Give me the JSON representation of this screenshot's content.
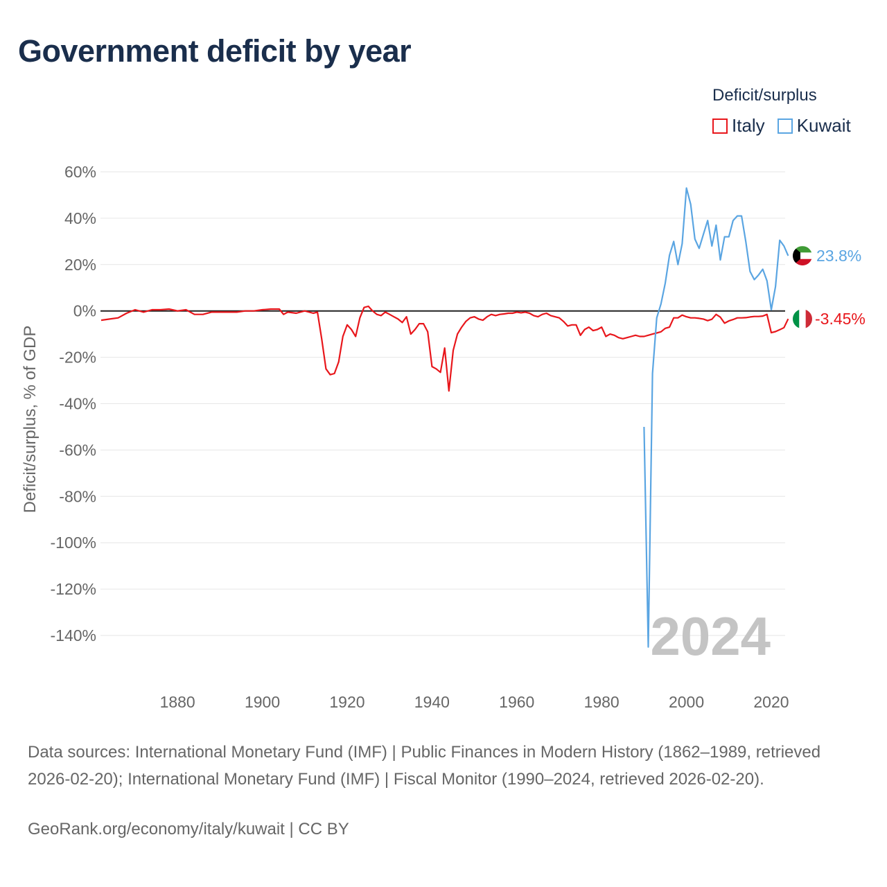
{
  "title": "Government deficit by year",
  "legend": {
    "title": "Deficit/surplus",
    "items": [
      {
        "name": "Italy",
        "color": "#e8161b"
      },
      {
        "name": "Kuwait",
        "color": "#5aa5e2"
      }
    ]
  },
  "chart_data": {
    "type": "line",
    "title": "Government deficit by year",
    "xlabel": "",
    "ylabel": "Deficit/surplus, % of GDP",
    "xlim": [
      1862,
      2024
    ],
    "ylim": [
      -150,
      60
    ],
    "y_ticks": [
      60,
      40,
      20,
      0,
      -20,
      -40,
      -60,
      -80,
      -100,
      -120,
      -140
    ],
    "y_tick_labels": [
      "60%",
      "40%",
      "20%",
      "0%",
      "-20%",
      "-40%",
      "-60%",
      "-80%",
      "-100%",
      "-120%",
      "-140%"
    ],
    "x_ticks": [
      1880,
      1900,
      1920,
      1940,
      1960,
      1980,
      2000,
      2020
    ],
    "x_tick_labels": [
      "1880",
      "1900",
      "1920",
      "1940",
      "1960",
      "1980",
      "2000",
      "2020"
    ],
    "grid": true,
    "legend_position": "top-right",
    "year_label": "2024",
    "series": [
      {
        "name": "Italy",
        "color": "#e8161b",
        "end_label": "-3.45%",
        "x": [
          1862,
          1864,
          1866,
          1868,
          1870,
          1872,
          1874,
          1876,
          1878,
          1880,
          1882,
          1884,
          1886,
          1888,
          1890,
          1892,
          1894,
          1896,
          1898,
          1900,
          1902,
          1904,
          1905,
          1906,
          1908,
          1910,
          1912,
          1913,
          1914,
          1915,
          1916,
          1917,
          1918,
          1919,
          1920,
          1921,
          1922,
          1923,
          1924,
          1925,
          1926,
          1927,
          1928,
          1929,
          1930,
          1931,
          1932,
          1933,
          1934,
          1935,
          1936,
          1937,
          1938,
          1939,
          1940,
          1941,
          1942,
          1943,
          1944,
          1945,
          1946,
          1947,
          1948,
          1949,
          1950,
          1951,
          1952,
          1953,
          1954,
          1955,
          1956,
          1957,
          1958,
          1959,
          1960,
          1961,
          1962,
          1963,
          1964,
          1965,
          1966,
          1967,
          1968,
          1969,
          1970,
          1971,
          1972,
          1973,
          1974,
          1975,
          1976,
          1977,
          1978,
          1979,
          1980,
          1981,
          1982,
          1983,
          1984,
          1985,
          1986,
          1987,
          1988,
          1989,
          1990,
          1991,
          1992,
          1993,
          1994,
          1995,
          1996,
          1997,
          1998,
          1999,
          2000,
          2001,
          2002,
          2003,
          2004,
          2005,
          2006,
          2007,
          2008,
          2009,
          2010,
          2011,
          2012,
          2013,
          2014,
          2015,
          2016,
          2017,
          2018,
          2019,
          2020,
          2021,
          2022,
          2023,
          2024
        ],
        "values": [
          -4,
          -3.5,
          -3,
          -1,
          0.5,
          -0.5,
          0.5,
          0.5,
          0.8,
          0,
          0.5,
          -1.5,
          -1.5,
          -0.5,
          -0.5,
          -0.5,
          -0.5,
          0,
          0,
          0.5,
          0.8,
          0.8,
          -1.5,
          -0.5,
          -1,
          0,
          -1,
          -0.5,
          -12,
          -25,
          -27.5,
          -27,
          -22,
          -11,
          -6,
          -8,
          -11,
          -3,
          1.5,
          2,
          0,
          -1.5,
          -2,
          -0.5,
          -1.5,
          -2.5,
          -3.5,
          -5,
          -2.5,
          -10,
          -8,
          -5.5,
          -5.5,
          -9,
          -24,
          -25,
          -26.5,
          -16,
          -34.5,
          -17,
          -10,
          -7,
          -4.5,
          -3,
          -2.5,
          -3.5,
          -4,
          -2.5,
          -1.5,
          -2,
          -1.5,
          -1.3,
          -1,
          -1,
          -0.5,
          -0.8,
          -0.5,
          -1,
          -2,
          -2.5,
          -1.5,
          -1,
          -2,
          -2.5,
          -3,
          -4.5,
          -6.5,
          -6,
          -6,
          -10.5,
          -8,
          -7,
          -8.5,
          -8,
          -7,
          -11,
          -10,
          -10.5,
          -11.5,
          -12,
          -11.5,
          -11,
          -10.5,
          -11,
          -11,
          -10.5,
          -10,
          -9.5,
          -9,
          -7.5,
          -7,
          -3,
          -3,
          -1.8,
          -2.5,
          -3,
          -3,
          -3.2,
          -3.5,
          -4.2,
          -3.6,
          -1.5,
          -2.7,
          -5.3,
          -4.3,
          -3.7,
          -3,
          -3,
          -2.9,
          -2.6,
          -2.4,
          -2.4,
          -2.2,
          -1.5,
          -9.4,
          -8.9,
          -8.1,
          -7.2,
          -3.45
        ]
      },
      {
        "name": "Kuwait",
        "color": "#5aa5e2",
        "end_label": "23.8%",
        "x": [
          1990,
          1991,
          1992,
          1993,
          1994,
          1995,
          1996,
          1997,
          1998,
          1999,
          2000,
          2001,
          2002,
          2003,
          2004,
          2005,
          2006,
          2007,
          2008,
          2009,
          2010,
          2011,
          2012,
          2013,
          2014,
          2015,
          2016,
          2017,
          2018,
          2019,
          2020,
          2021,
          2022,
          2023,
          2024
        ],
        "values": [
          -50,
          -145,
          -27,
          -3,
          3,
          12,
          24,
          30,
          20,
          29,
          53,
          46,
          31,
          27,
          33,
          39,
          28,
          37,
          22,
          32,
          32,
          39,
          41,
          41,
          30,
          17,
          13.5,
          15.5,
          18,
          13,
          0.5,
          10.5,
          30.5,
          28,
          23.8
        ]
      }
    ]
  },
  "sources": "Data sources: International Monetary Fund (IMF) | Public Finances in Modern History (1862–1989, retrieved 2026-02-20); International Monetary Fund (IMF) | Fiscal Monitor (1990–2024, retrieved 2026-02-20).",
  "credit": "GeoRank.org/economy/italy/kuwait | CC BY"
}
